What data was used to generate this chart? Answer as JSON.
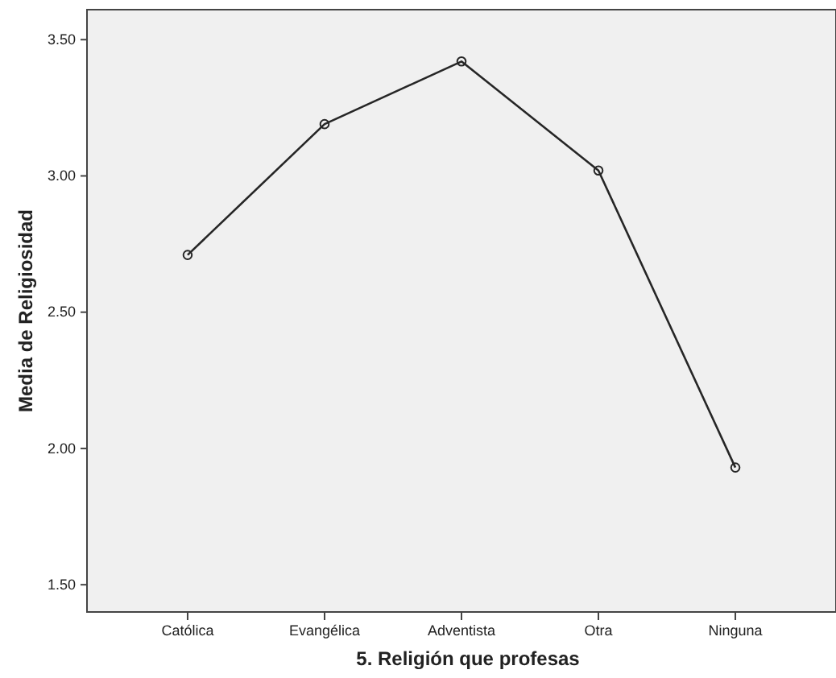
{
  "chart_data": {
    "type": "line",
    "xlabel": "5. Religión que profesas",
    "ylabel": "Media de Religiosidad",
    "categories": [
      "Católica",
      "Evangélica",
      "Adventista",
      "Otra",
      "Ninguna"
    ],
    "series": [
      {
        "color": "#262626",
        "values": [
          2.71,
          3.19,
          3.42,
          3.02,
          1.93
        ]
      }
    ],
    "ylim": [
      1.4,
      3.61
    ],
    "yticks": [
      {
        "value": 1.5,
        "label": "1.50"
      },
      {
        "value": 2.0,
        "label": "2.00"
      },
      {
        "value": 2.5,
        "label": "2.50"
      },
      {
        "value": 3.0,
        "label": "3.00"
      },
      {
        "value": 3.5,
        "label": "3.50"
      }
    ],
    "marker": "circle",
    "line_style": "solid"
  }
}
